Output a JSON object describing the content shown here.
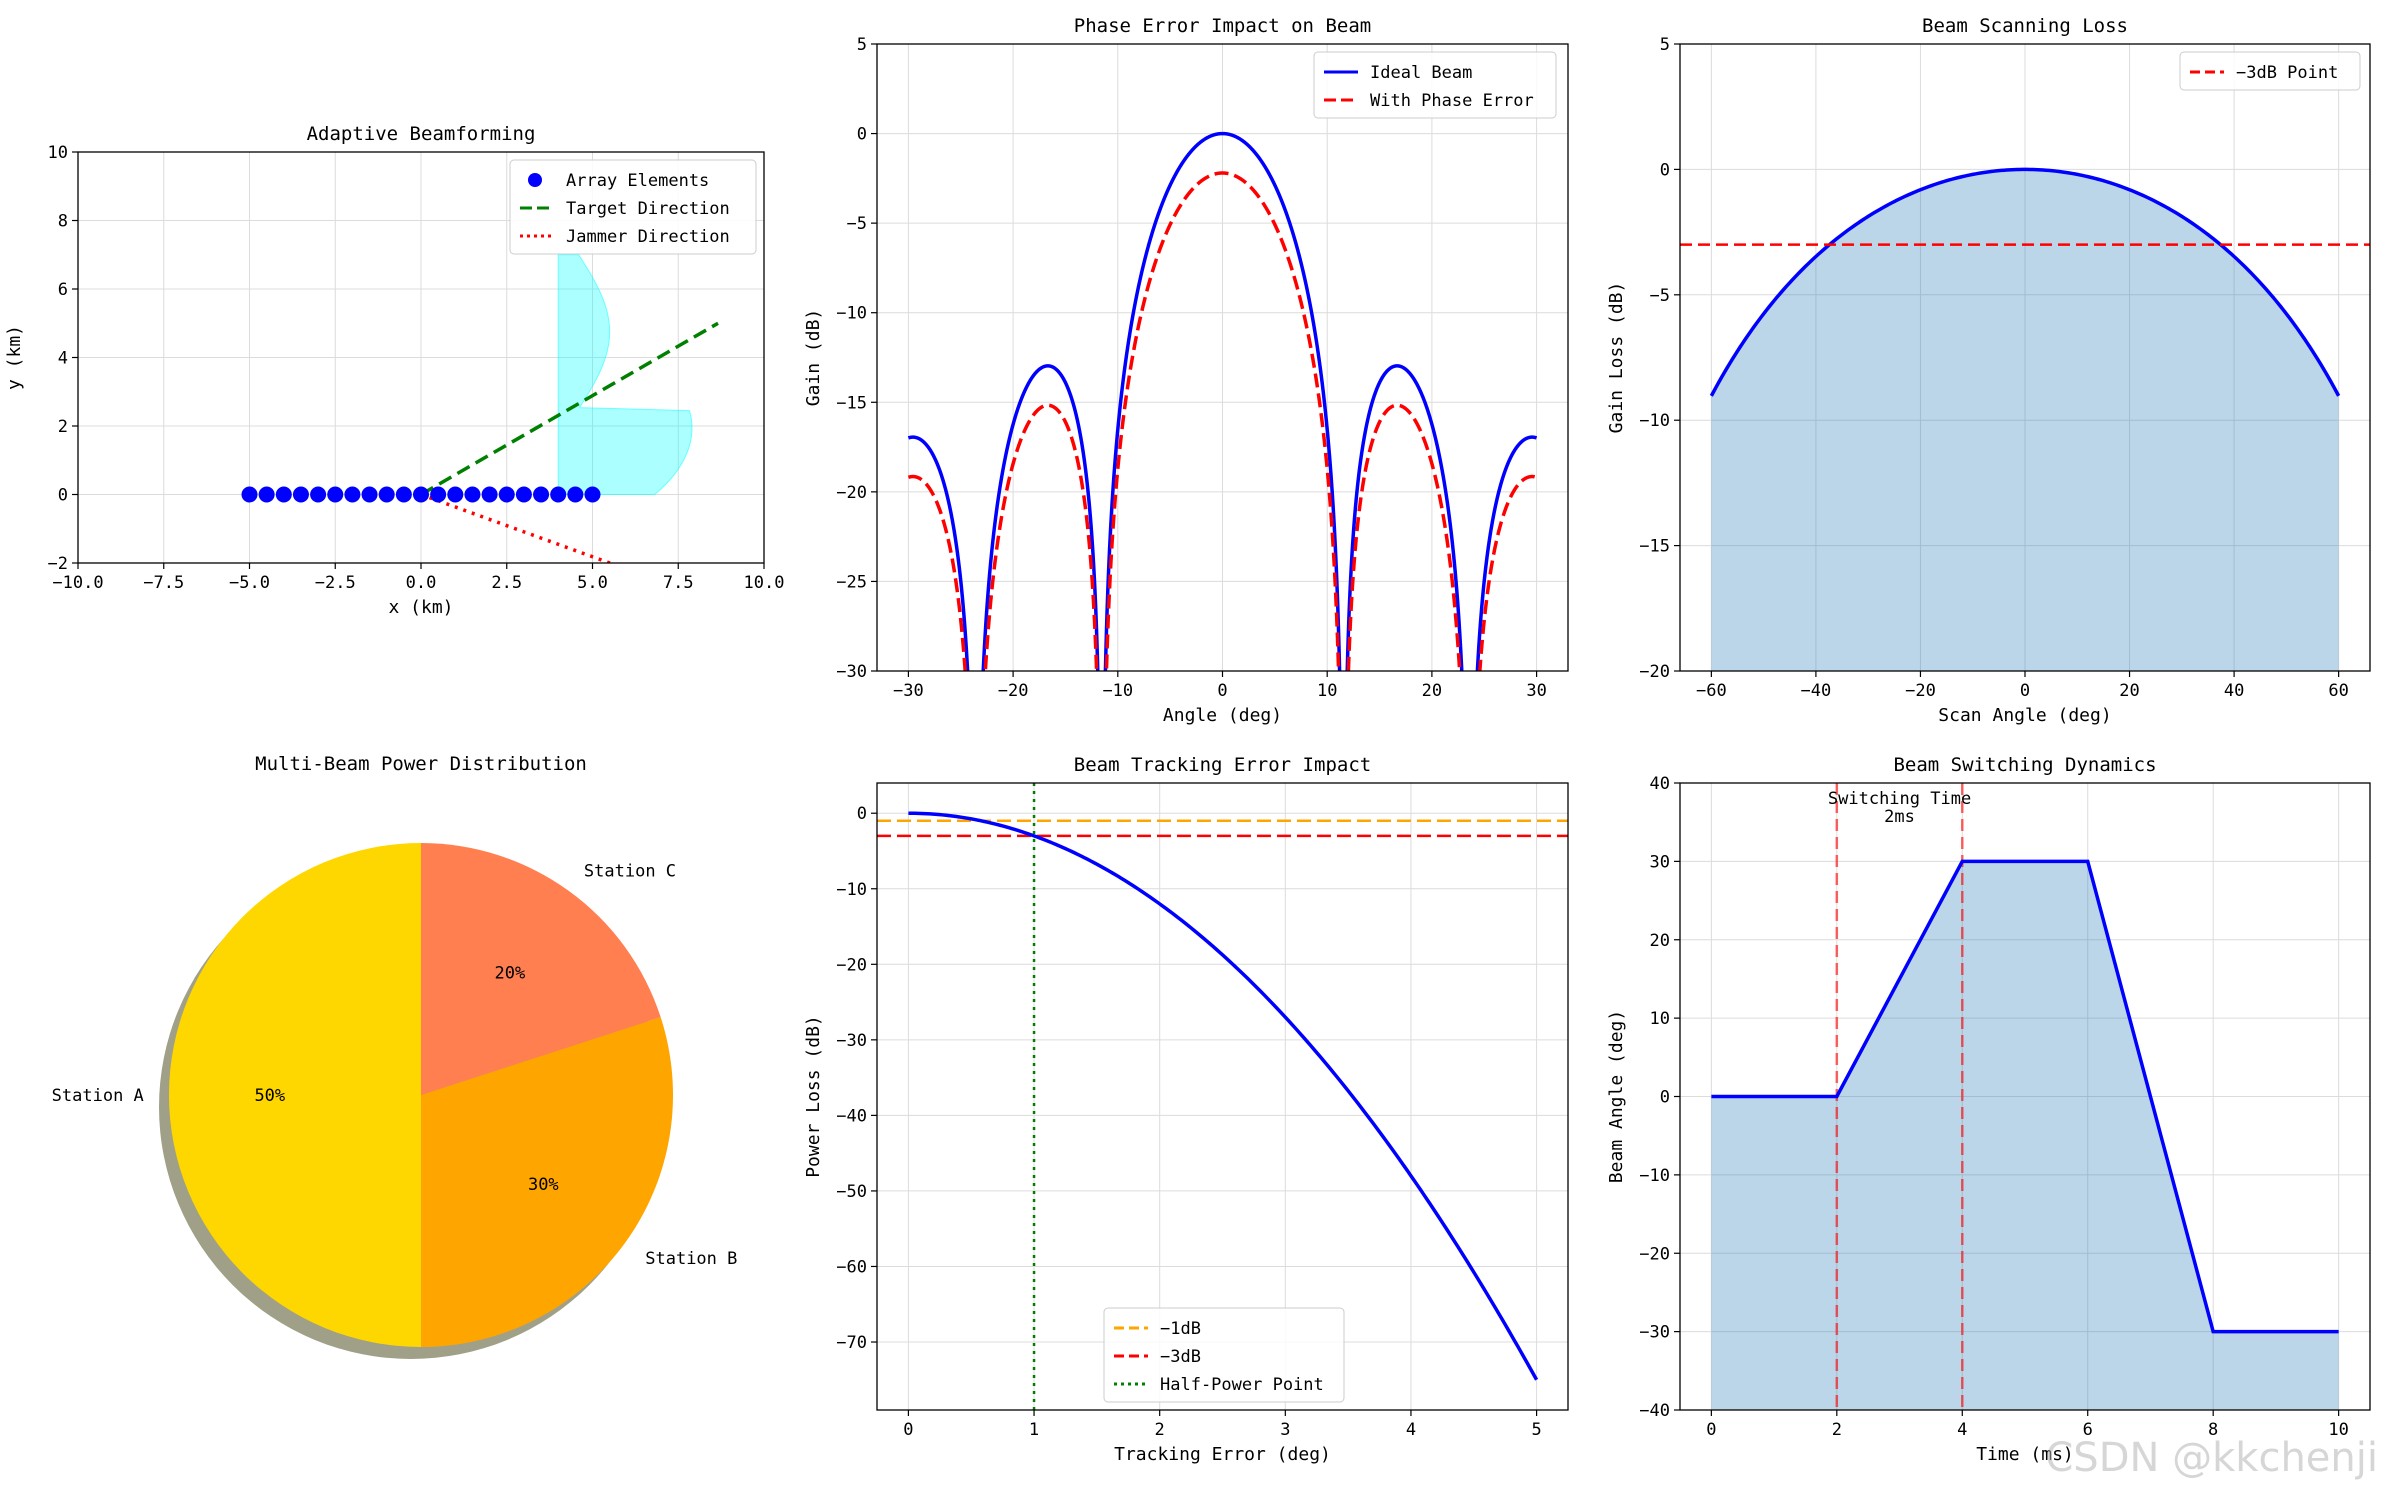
{
  "watermark": "CSDN @kkchenji",
  "chart_data": [
    {
      "id": "adaptive",
      "type": "scatter",
      "title": "Adaptive Beamforming",
      "xlabel": "x (km)",
      "ylabel": "y (km)",
      "xlim": [
        -10,
        10
      ],
      "ylim": [
        -2,
        10
      ],
      "xticks": [
        -10,
        -7.5,
        -5,
        -2.5,
        0,
        2.5,
        5,
        7.5,
        10
      ],
      "xtick_labels": [
        "−10.0",
        "−7.5",
        "−5.0",
        "−2.5",
        "0.0",
        "2.5",
        "5.0",
        "7.5",
        "10.0"
      ],
      "yticks": [
        -2,
        0,
        2,
        4,
        6,
        8,
        10
      ],
      "ytick_labels": [
        "−2",
        "0",
        "2",
        "4",
        "6",
        "8",
        "10"
      ],
      "array_elements": {
        "x": [
          -5,
          -4.5,
          -4,
          -3.5,
          -3,
          -2.5,
          -2,
          -1.5,
          -1,
          -0.5,
          0,
          0.5,
          1,
          1.5,
          2,
          2.5,
          3,
          3.5,
          4,
          4.5,
          5
        ],
        "y": 0
      },
      "target_direction": {
        "x": [
          0,
          8.66
        ],
        "y": [
          0,
          5
        ]
      },
      "jammer_direction": {
        "x": [
          0,
          5.64
        ],
        "y": [
          0,
          -2.05
        ]
      },
      "pattern_region": {
        "x_base": 4,
        "x_max": 8,
        "y_min": 0,
        "y_max": 7
      },
      "legend": [
        "Array Elements",
        "Target Direction",
        "Jammer Direction"
      ],
      "colors": {
        "elements": "#0000ff",
        "target": "#008000",
        "jammer": "#ff0000",
        "pattern": "#00ffff"
      }
    },
    {
      "id": "phase",
      "type": "line",
      "title": "Phase Error Impact on Beam",
      "xlabel": "Angle (deg)",
      "ylabel": "Gain (dB)",
      "xlim": [
        -33,
        33
      ],
      "ylim": [
        -30,
        5
      ],
      "xticks": [
        -30,
        -20,
        -10,
        0,
        10,
        20,
        30
      ],
      "xtick_labels": [
        "−30",
        "−20",
        "−10",
        "0",
        "10",
        "20",
        "30"
      ],
      "yticks": [
        -30,
        -25,
        -20,
        -15,
        -10,
        -5,
        0,
        5
      ],
      "ytick_labels": [
        "−30",
        "−25",
        "−20",
        "−15",
        "−10",
        "−5",
        "0",
        "5"
      ],
      "array_size": 10,
      "phase_error_offset_db": -2.2,
      "series": [
        {
          "name": "Ideal Beam",
          "color": "#0000ff",
          "style": "solid"
        },
        {
          "name": "With Phase Error",
          "color": "#ff0000",
          "style": "dashed"
        }
      ],
      "legend": [
        "Ideal Beam",
        "With Phase Error"
      ]
    },
    {
      "id": "scanloss",
      "type": "area",
      "title": "Beam Scanning Loss",
      "xlabel": "Scan Angle (deg)",
      "ylabel": "Gain Loss (dB)",
      "xlim": [
        -66,
        66
      ],
      "ylim": [
        -20,
        5
      ],
      "xticks": [
        -60,
        -40,
        -20,
        0,
        20,
        40,
        60
      ],
      "xtick_labels": [
        "−60",
        "−40",
        "−20",
        "0",
        "20",
        "40",
        "60"
      ],
      "yticks": [
        -20,
        -15,
        -10,
        -5,
        0,
        5
      ],
      "ytick_labels": [
        "−20",
        "−15",
        "−10",
        "−5",
        "0",
        "5"
      ],
      "curve": "20*log10(cos(theta)^1.5)",
      "x_range": [
        -60,
        60
      ],
      "reference_line": {
        "name": "−3dB Point",
        "y": -3,
        "color": "#ff0000"
      },
      "legend": [
        "−3dB Point"
      ]
    },
    {
      "id": "pie",
      "type": "pie",
      "title": "Multi-Beam Power Distribution",
      "labels": [
        "Station A",
        "Station B",
        "Station C"
      ],
      "values": [
        50,
        30,
        20
      ],
      "pct_labels": [
        "50%",
        "30%",
        "20%"
      ],
      "colors": [
        "#ffd700",
        "#ffa500",
        "#ff7f50"
      ],
      "start_angle_deg": 90,
      "shadow": true
    },
    {
      "id": "tracking",
      "type": "line",
      "title": "Beam Tracking Error Impact",
      "xlabel": "Tracking Error (deg)",
      "ylabel": "Power Loss (dB)",
      "xlim": [
        -0.25,
        5.25
      ],
      "ylim": [
        -79,
        4
      ],
      "xticks": [
        0,
        1,
        2,
        3,
        4,
        5
      ],
      "xtick_labels": [
        "0",
        "1",
        "2",
        "3",
        "4",
        "5"
      ],
      "yticks": [
        -70,
        -60,
        -50,
        -40,
        -30,
        -20,
        -10,
        0
      ],
      "ytick_labels": [
        "−70",
        "−60",
        "−50",
        "−40",
        "−30",
        "−20",
        "−10",
        "0"
      ],
      "curve": "-3*(x)^2",
      "x_range": [
        0,
        5
      ],
      "reference_lines": [
        {
          "name": "−1dB",
          "y": -1,
          "color": "#ffa500",
          "style": "dashed"
        },
        {
          "name": "−3dB",
          "y": -3,
          "color": "#ff0000",
          "style": "dashed"
        }
      ],
      "vertical_line": {
        "name": "Half-Power Point",
        "x": 1,
        "color": "#008000",
        "style": "dotted"
      },
      "legend": [
        "−1dB",
        "−3dB",
        "Half-Power Point"
      ]
    },
    {
      "id": "switching",
      "type": "area",
      "title": "Beam Switching Dynamics",
      "xlabel": "Time (ms)",
      "ylabel": "Beam Angle (deg)",
      "xlim": [
        -0.5,
        10.5
      ],
      "ylim": [
        -40,
        40
      ],
      "xticks": [
        0,
        2,
        4,
        6,
        8,
        10
      ],
      "xtick_labels": [
        "0",
        "2",
        "4",
        "6",
        "8",
        "10"
      ],
      "yticks": [
        -40,
        -30,
        -20,
        -10,
        0,
        10,
        20,
        30,
        40
      ],
      "ytick_labels": [
        "−40",
        "−30",
        "−20",
        "−10",
        "0",
        "10",
        "20",
        "30",
        "40"
      ],
      "x": [
        0,
        2,
        4,
        6,
        8,
        10
      ],
      "y": [
        0,
        0,
        30,
        30,
        -30,
        -30
      ],
      "vertical_lines": [
        2,
        4
      ],
      "annotation": [
        "Switching Time",
        "2ms"
      ]
    }
  ]
}
